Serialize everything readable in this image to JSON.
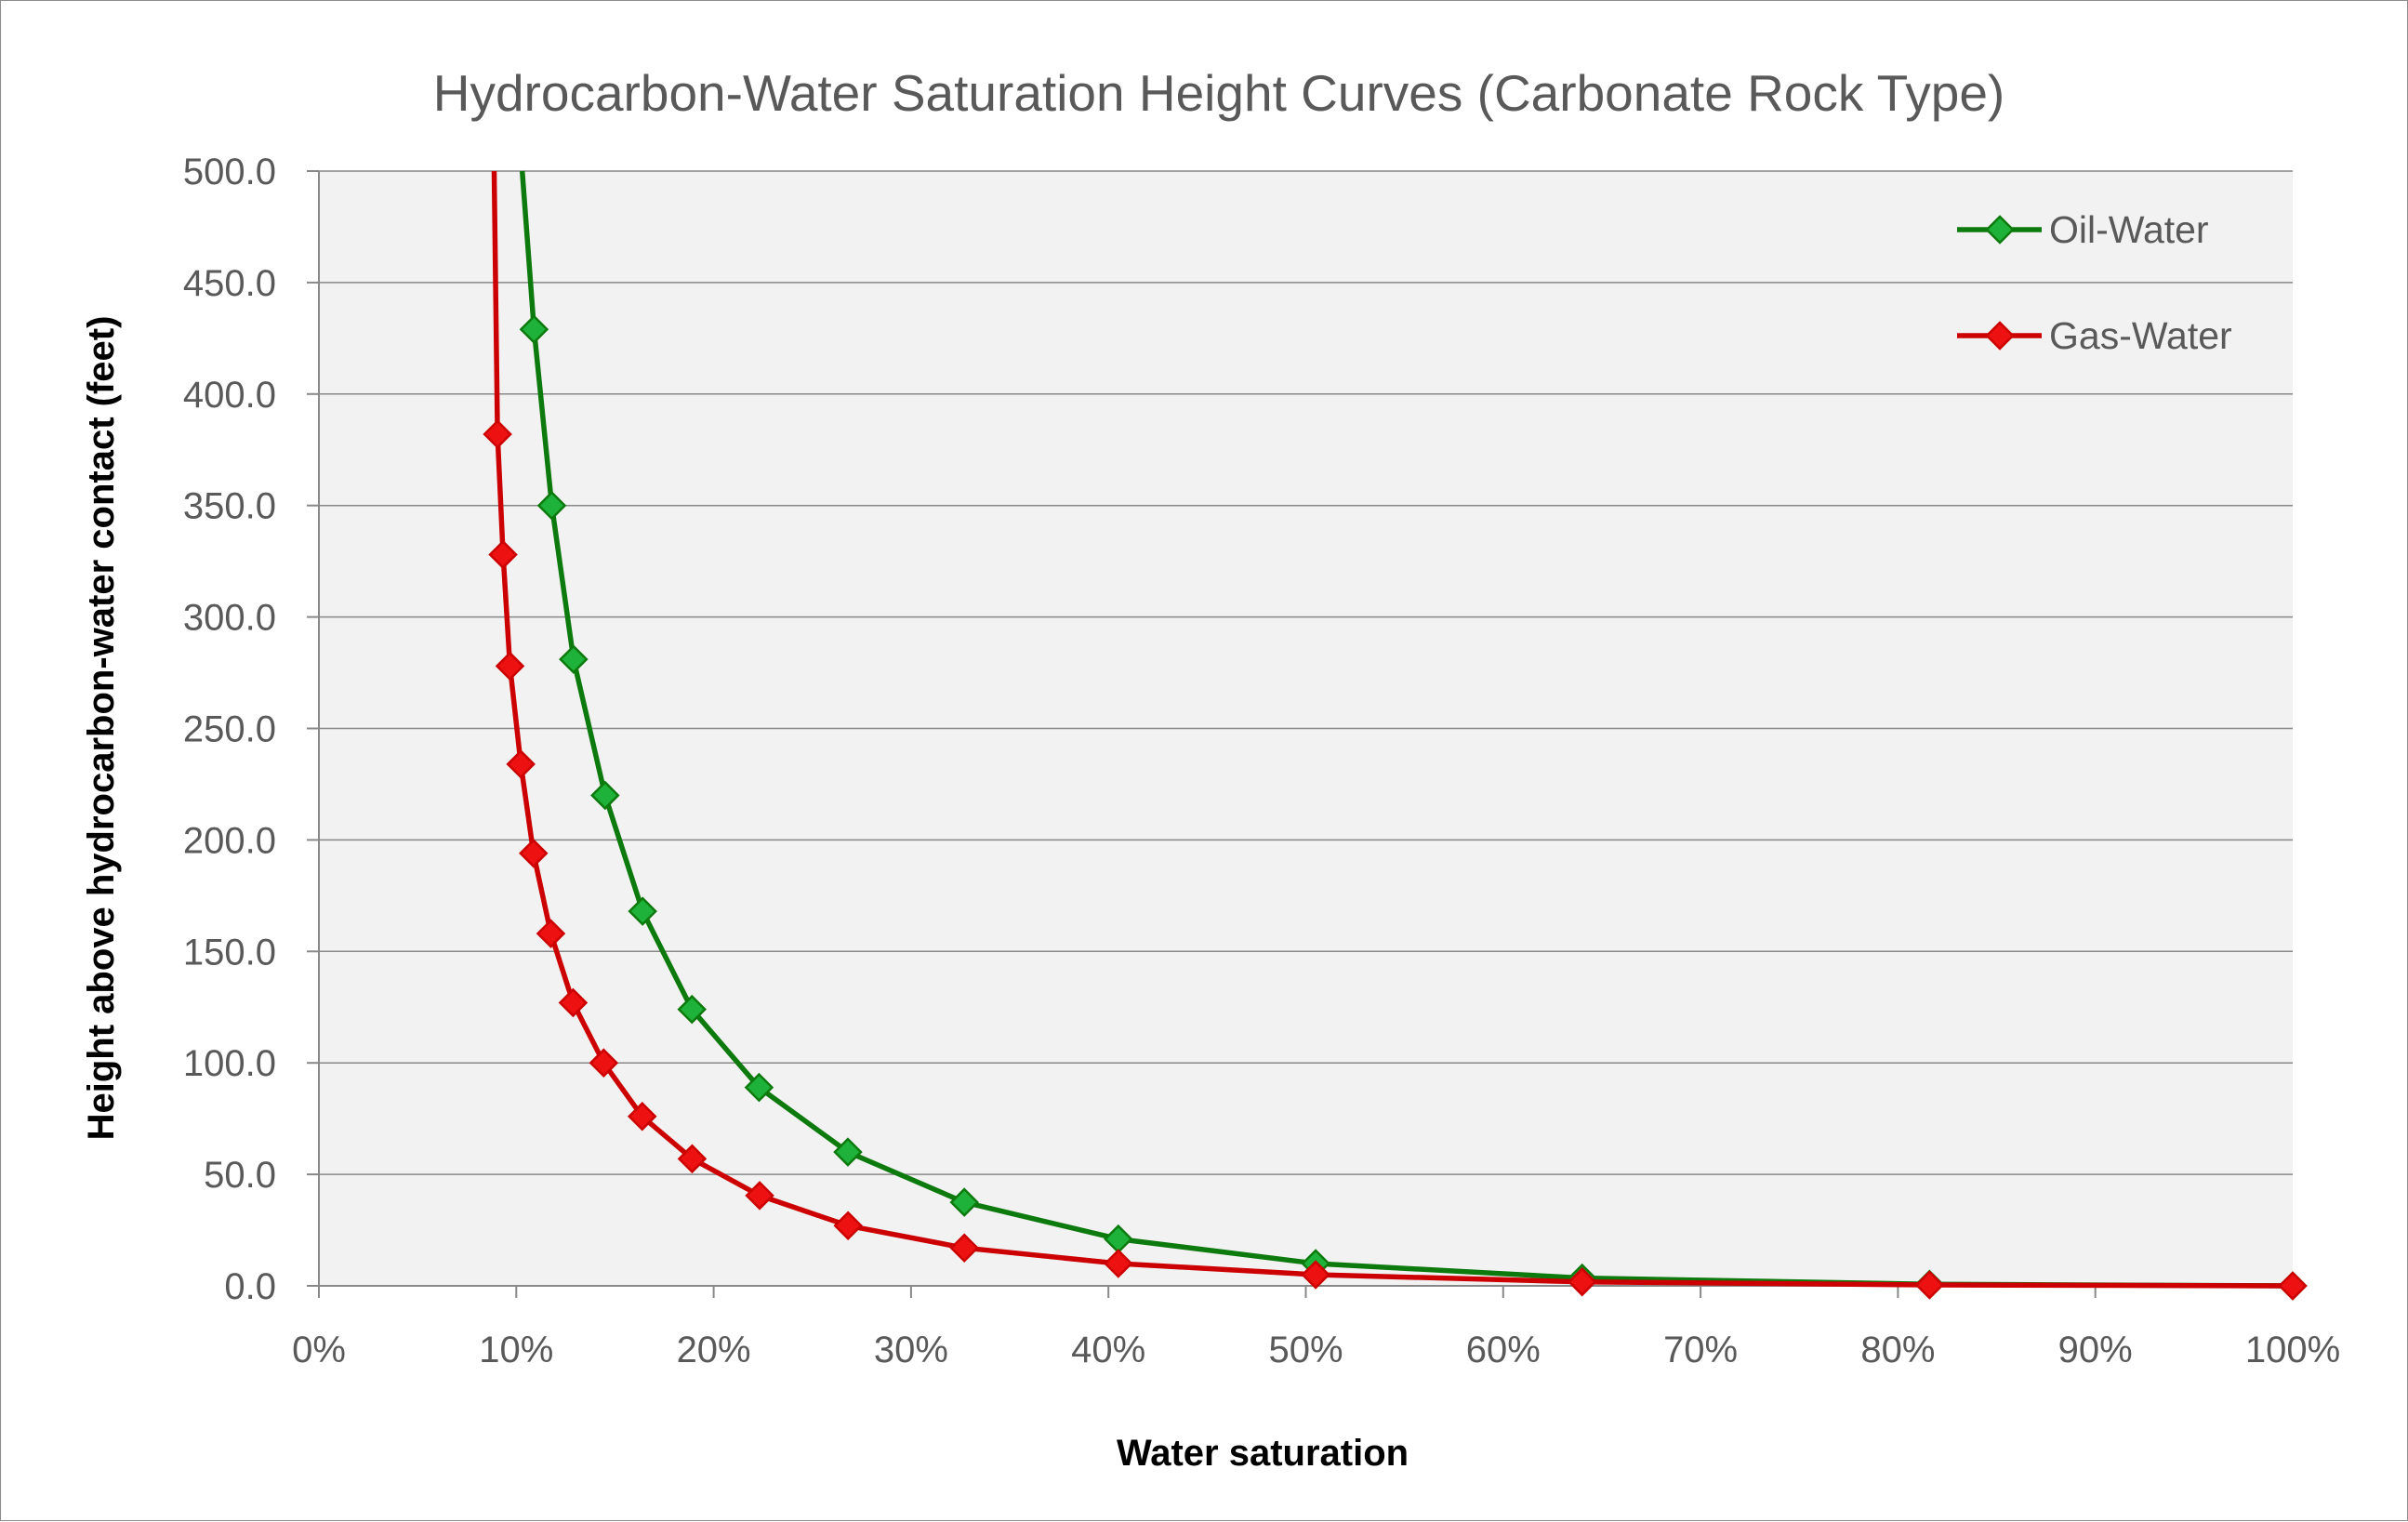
{
  "chart_data": {
    "type": "line",
    "title": "Hydrocarbon-Water Saturation Height Curves (Carbonate Rock Type)",
    "xlabel": "Water saturation",
    "ylabel": "Height above hydrocarbon-water contact (feet)",
    "xlim": [
      0,
      1
    ],
    "ylim": [
      0,
      500
    ],
    "x_tick_labels": [
      "0%",
      "10%",
      "20%",
      "30%",
      "40%",
      "50%",
      "60%",
      "70%",
      "80%",
      "90%",
      "100%"
    ],
    "y_tick_labels": [
      "0.0",
      "50.0",
      "100.0",
      "150.0",
      "200.0",
      "250.0",
      "300.0",
      "350.0",
      "400.0",
      "450.0",
      "500.0"
    ],
    "grid": true,
    "legend_position": "top-right",
    "series": [
      {
        "name": "Oil-Water",
        "color": "#0c7a0c",
        "marker_color": "#1fb23a",
        "lead_in": [
          [
            0.103,
            500
          ]
        ],
        "points": [
          [
            0.109,
            429
          ],
          [
            0.118,
            350
          ],
          [
            0.129,
            281
          ],
          [
            0.145,
            220
          ],
          [
            0.164,
            168
          ],
          [
            0.189,
            124
          ],
          [
            0.223,
            89
          ],
          [
            0.268,
            60
          ],
          [
            0.327,
            37.5
          ],
          [
            0.405,
            21
          ],
          [
            0.505,
            10
          ],
          [
            0.64,
            3.5
          ],
          [
            0.816,
            0.7
          ],
          [
            1.0,
            0
          ]
        ]
      },
      {
        "name": "Gas-Water",
        "color": "#cc0000",
        "marker_color": "#ee1111",
        "lead_in": [
          [
            0.0888,
            500
          ]
        ],
        "points": [
          [
            0.0905,
            382
          ],
          [
            0.0933,
            328
          ],
          [
            0.0968,
            278
          ],
          [
            0.1023,
            234
          ],
          [
            0.1087,
            194
          ],
          [
            0.1175,
            158
          ],
          [
            0.1288,
            127
          ],
          [
            0.1443,
            100
          ],
          [
            0.1638,
            76
          ],
          [
            0.1891,
            57
          ],
          [
            0.2233,
            40.5
          ],
          [
            0.2681,
            27
          ],
          [
            0.327,
            17
          ],
          [
            0.405,
            10
          ],
          [
            0.505,
            5
          ],
          [
            0.64,
            1.8
          ],
          [
            0.816,
            0.4
          ],
          [
            1.0,
            0
          ]
        ]
      }
    ]
  }
}
